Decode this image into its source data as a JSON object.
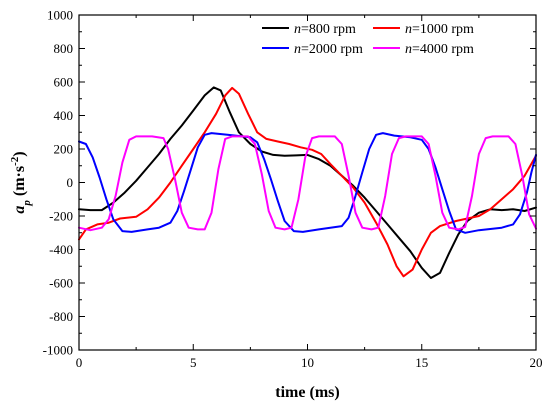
{
  "chart_data": {
    "type": "line",
    "xlabel": "time (ms)",
    "ylabel_main": "a",
    "ylabel_sub": "p",
    "ylabel_units": "(m·s",
    "ylabel_sup": "-2",
    "ylabel_close": ")",
    "xlim": [
      0,
      20
    ],
    "ylim": [
      -1000,
      1000
    ],
    "xticks": [
      0,
      5,
      10,
      15,
      20
    ],
    "xtick_labels": [
      "0",
      "5",
      "10",
      "15",
      "20"
    ],
    "yticks": [
      -1000,
      -800,
      -600,
      -400,
      -200,
      0,
      200,
      400,
      600,
      800,
      1000
    ],
    "ytick_labels": [
      "-1000",
      "-800",
      "-600",
      "-400",
      "-200",
      "0",
      "200",
      "400",
      "600",
      "800",
      "1000"
    ],
    "grid": false,
    "legend_position": "top-right",
    "series": [
      {
        "name": "n=800 rpm",
        "legend_var": "n",
        "legend_rest": "=800 rpm",
        "color": "#000000",
        "points": [
          [
            0,
            -160
          ],
          [
            0.5,
            -165
          ],
          [
            1.0,
            -165
          ],
          [
            1.5,
            -120
          ],
          [
            2.0,
            -60
          ],
          [
            2.5,
            10
          ],
          [
            3.0,
            90
          ],
          [
            3.5,
            170
          ],
          [
            4.0,
            260
          ],
          [
            4.5,
            340
          ],
          [
            5.0,
            430
          ],
          [
            5.5,
            520
          ],
          [
            5.9,
            568
          ],
          [
            6.2,
            550
          ],
          [
            6.6,
            420
          ],
          [
            7.0,
            300
          ],
          [
            7.5,
            230
          ],
          [
            8.0,
            185
          ],
          [
            8.5,
            165
          ],
          [
            9.0,
            160
          ],
          [
            9.5,
            162
          ],
          [
            10.0,
            165
          ],
          [
            10.5,
            140
          ],
          [
            11.0,
            100
          ],
          [
            11.5,
            40
          ],
          [
            12.0,
            -20
          ],
          [
            12.5,
            -90
          ],
          [
            13.0,
            -170
          ],
          [
            13.5,
            -250
          ],
          [
            14.0,
            -330
          ],
          [
            14.5,
            -410
          ],
          [
            15.0,
            -510
          ],
          [
            15.4,
            -570
          ],
          [
            15.8,
            -540
          ],
          [
            16.2,
            -420
          ],
          [
            16.6,
            -310
          ],
          [
            17.0,
            -230
          ],
          [
            17.5,
            -180
          ],
          [
            18.0,
            -160
          ],
          [
            18.5,
            -165
          ],
          [
            19.0,
            -160
          ],
          [
            19.5,
            -170
          ],
          [
            20.0,
            -150
          ]
        ]
      },
      {
        "name": "n=1000 rpm",
        "legend_var": "n",
        "legend_rest": "=1000 rpm",
        "color": "#ff0000",
        "points": [
          [
            0,
            -340
          ],
          [
            0.3,
            -280
          ],
          [
            0.8,
            -250
          ],
          [
            1.3,
            -240
          ],
          [
            1.8,
            -215
          ],
          [
            2.5,
            -205
          ],
          [
            3.0,
            -160
          ],
          [
            3.5,
            -90
          ],
          [
            4.0,
            0
          ],
          [
            4.5,
            100
          ],
          [
            5.0,
            200
          ],
          [
            5.5,
            300
          ],
          [
            6.0,
            410
          ],
          [
            6.4,
            520
          ],
          [
            6.7,
            565
          ],
          [
            7.0,
            530
          ],
          [
            7.4,
            410
          ],
          [
            7.8,
            300
          ],
          [
            8.2,
            260
          ],
          [
            8.7,
            245
          ],
          [
            9.2,
            230
          ],
          [
            9.7,
            210
          ],
          [
            10.2,
            195
          ],
          [
            10.6,
            170
          ],
          [
            11.0,
            110
          ],
          [
            11.5,
            40
          ],
          [
            12.0,
            -30
          ],
          [
            12.5,
            -120
          ],
          [
            13.0,
            -240
          ],
          [
            13.5,
            -370
          ],
          [
            13.9,
            -500
          ],
          [
            14.2,
            -560
          ],
          [
            14.6,
            -520
          ],
          [
            15.0,
            -400
          ],
          [
            15.4,
            -300
          ],
          [
            15.8,
            -260
          ],
          [
            16.5,
            -230
          ],
          [
            17.0,
            -215
          ],
          [
            17.5,
            -200
          ],
          [
            18.0,
            -160
          ],
          [
            18.5,
            -100
          ],
          [
            19.0,
            -40
          ],
          [
            19.5,
            40
          ],
          [
            20.0,
            160
          ]
        ]
      },
      {
        "name": "n=2000 rpm",
        "legend_var": "n",
        "legend_rest": "=2000 rpm",
        "color": "#0000ff",
        "points": [
          [
            0,
            245
          ],
          [
            0.3,
            230
          ],
          [
            0.6,
            150
          ],
          [
            0.9,
            30
          ],
          [
            1.2,
            -100
          ],
          [
            1.5,
            -220
          ],
          [
            1.9,
            -290
          ],
          [
            2.3,
            -295
          ],
          [
            3.0,
            -280
          ],
          [
            3.5,
            -270
          ],
          [
            4.0,
            -240
          ],
          [
            4.3,
            -170
          ],
          [
            4.6,
            -50
          ],
          [
            4.9,
            80
          ],
          [
            5.2,
            210
          ],
          [
            5.5,
            285
          ],
          [
            5.8,
            295
          ],
          [
            6.5,
            285
          ],
          [
            7.5,
            270
          ],
          [
            7.8,
            240
          ],
          [
            8.1,
            140
          ],
          [
            8.4,
            20
          ],
          [
            8.7,
            -110
          ],
          [
            9.0,
            -230
          ],
          [
            9.4,
            -290
          ],
          [
            9.8,
            -295
          ],
          [
            10.5,
            -280
          ],
          [
            11.5,
            -260
          ],
          [
            11.8,
            -210
          ],
          [
            12.1,
            -80
          ],
          [
            12.4,
            60
          ],
          [
            12.7,
            200
          ],
          [
            13.0,
            285
          ],
          [
            13.3,
            295
          ],
          [
            13.8,
            280
          ],
          [
            14.5,
            270
          ],
          [
            15.0,
            255
          ],
          [
            15.3,
            200
          ],
          [
            15.6,
            90
          ],
          [
            15.9,
            -40
          ],
          [
            16.2,
            -170
          ],
          [
            16.5,
            -280
          ],
          [
            16.9,
            -300
          ],
          [
            17.5,
            -285
          ],
          [
            18.5,
            -270
          ],
          [
            19.0,
            -250
          ],
          [
            19.3,
            -190
          ],
          [
            19.6,
            -60
          ],
          [
            19.8,
            60
          ],
          [
            20.0,
            165
          ]
        ]
      },
      {
        "name": "n=4000 rpm",
        "legend_var": "n",
        "legend_rest": "=4000 rpm",
        "color": "#ff00ff",
        "points": [
          [
            0,
            -270
          ],
          [
            0.5,
            -285
          ],
          [
            1.0,
            -270
          ],
          [
            1.3,
            -220
          ],
          [
            1.6,
            -80
          ],
          [
            1.9,
            120
          ],
          [
            2.2,
            255
          ],
          [
            2.5,
            275
          ],
          [
            3.2,
            275
          ],
          [
            3.7,
            265
          ],
          [
            3.9,
            200
          ],
          [
            4.2,
            20
          ],
          [
            4.5,
            -180
          ],
          [
            4.8,
            -270
          ],
          [
            5.2,
            -280
          ],
          [
            5.5,
            -280
          ],
          [
            5.8,
            -180
          ],
          [
            6.1,
            80
          ],
          [
            6.4,
            260
          ],
          [
            6.7,
            275
          ],
          [
            7.4,
            275
          ],
          [
            7.7,
            230
          ],
          [
            8.0,
            50
          ],
          [
            8.3,
            -170
          ],
          [
            8.6,
            -270
          ],
          [
            9.0,
            -280
          ],
          [
            9.3,
            -270
          ],
          [
            9.6,
            -100
          ],
          [
            9.9,
            150
          ],
          [
            10.2,
            265
          ],
          [
            10.5,
            275
          ],
          [
            11.2,
            275
          ],
          [
            11.5,
            230
          ],
          [
            11.8,
            40
          ],
          [
            12.1,
            -180
          ],
          [
            12.4,
            -270
          ],
          [
            12.8,
            -280
          ],
          [
            13.1,
            -270
          ],
          [
            13.4,
            -80
          ],
          [
            13.7,
            170
          ],
          [
            14.0,
            265
          ],
          [
            14.3,
            275
          ],
          [
            15.0,
            275
          ],
          [
            15.3,
            230
          ],
          [
            15.6,
            40
          ],
          [
            15.9,
            -180
          ],
          [
            16.2,
            -270
          ],
          [
            16.6,
            -280
          ],
          [
            16.9,
            -265
          ],
          [
            17.2,
            -80
          ],
          [
            17.5,
            170
          ],
          [
            17.8,
            265
          ],
          [
            18.1,
            275
          ],
          [
            18.8,
            275
          ],
          [
            19.1,
            230
          ],
          [
            19.4,
            40
          ],
          [
            19.7,
            -190
          ],
          [
            20.0,
            -275
          ]
        ]
      }
    ]
  }
}
